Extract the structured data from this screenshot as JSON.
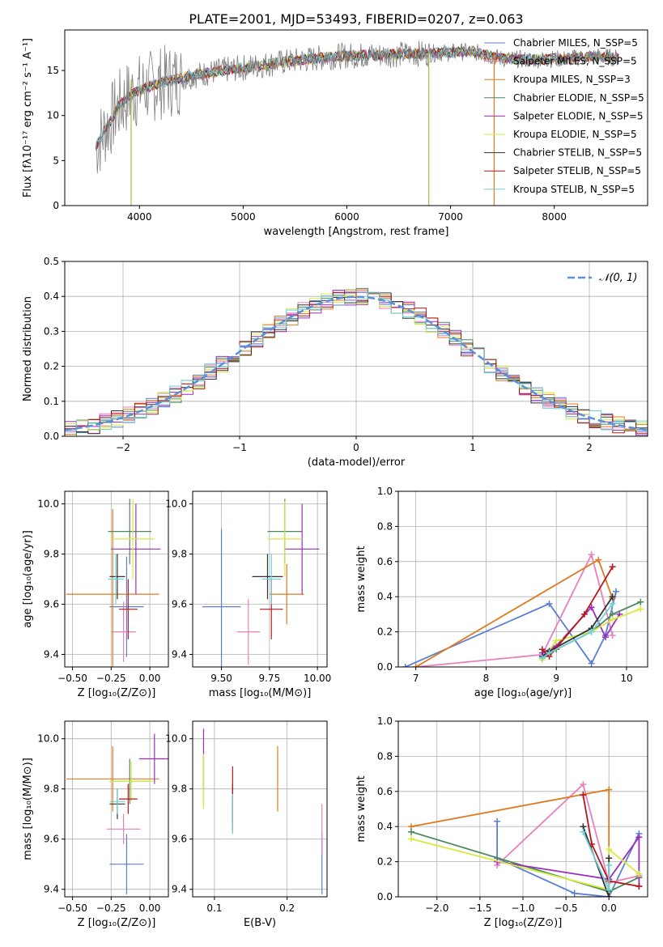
{
  "figure_title": "PLATE=2001, MJD=53493, FIBERID=0207, z=0.063",
  "colors": {
    "chabrier_miles": "#5b7fd6",
    "salpeter_miles": "#e87fbf",
    "kroupa_miles": "#e07a1f",
    "chabrier_elodie": "#4a8a5a",
    "salpeter_elodie": "#9a2fbd",
    "kroupa_elodie": "#d6ea3c",
    "chabrier_stelib": "#333333",
    "salpeter_stelib": "#b5171a",
    "kroupa_stelib": "#6fd1d8",
    "data": "#808080",
    "normal_curve": "#5b8fd9",
    "grid": "#b0b0b0"
  },
  "chart_data": [
    {
      "id": "spectrum",
      "type": "line",
      "xlabel": "wavelength [Angstrom, rest frame]",
      "ylabel": "Flux [fλ10⁻¹⁷ erg cm⁻² s⁻¹ A⁻¹]",
      "xlim": [
        3280,
        8900
      ],
      "ylim": [
        0,
        19.5
      ],
      "xticks": [
        4000,
        5000,
        6000,
        7000,
        8000
      ],
      "yticks": [
        0,
        5,
        10,
        15
      ],
      "grid": false,
      "legend_position": "right",
      "legend": [
        "Chabrier MILES, N_SSP=5",
        "Salpeter MILES, N_SSP=5",
        "Kroupa MILES, N_SSP=3",
        "Chabrier ELODIE, N_SSP=5",
        "Salpeter ELODIE, N_SSP=5",
        "Kroupa ELODIE, N_SSP=5",
        "Chabrier STELIB, N_SSP=5",
        "Salpeter STELIB, N_SSP=5",
        "Kroupa STELIB, N_SSP=5"
      ],
      "continuum": {
        "x": [
          3580,
          3650,
          3700,
          3800,
          3900,
          4000,
          4200,
          4500,
          4800,
          5000,
          5300,
          5600,
          5900,
          6200,
          6500,
          6800,
          7000,
          7200,
          7400,
          7500,
          7800,
          8100,
          8400,
          8600
        ],
        "y": [
          6.5,
          8,
          9,
          11,
          12.2,
          12.8,
          13.6,
          14.4,
          15,
          15.3,
          15.8,
          16.2,
          16.6,
          16.7,
          16.8,
          16.9,
          17,
          17.1,
          16.6,
          16.3,
          16.2,
          16.3,
          16.6,
          16.4
        ]
      }
    },
    {
      "id": "residual_distribution",
      "type": "line",
      "xlabel": "(data-model)/error",
      "ylabel": "Normed distribution",
      "xlim": [
        -2.5,
        2.5
      ],
      "ylim": [
        0,
        0.5
      ],
      "xticks": [
        -2,
        -1,
        0,
        1,
        2
      ],
      "xtick_labels": [
        "−2",
        "−1",
        "0",
        "1",
        "2"
      ],
      "yticks": [
        0,
        0.1,
        0.2,
        0.3,
        0.4,
        0.5
      ],
      "ytick_labels": [
        "0.0",
        "0.1",
        "0.2",
        "0.3",
        "0.4",
        "0.5"
      ],
      "grid": true,
      "legend_position": "top-right",
      "legend": [
        "𝒩(0, 1)"
      ],
      "histogram_bin_width": 0.1
    },
    {
      "id": "age_vs_Z",
      "type": "scatter",
      "xlabel": "Z [log₁₀(Z/Z⊙)]",
      "ylabel": "age  [log₁₀(age/yr)]",
      "xlim": [
        -0.55,
        0.12
      ],
      "ylim": [
        9.35,
        10.05
      ],
      "xticks": [
        -0.5,
        -0.25,
        0.0
      ],
      "xtick_labels": [
        "−0.50",
        "−0.25",
        "0.00"
      ],
      "yticks": [
        9.4,
        9.6,
        9.8,
        10.0
      ],
      "ytick_labels": [
        "9.4",
        "9.6",
        "9.8",
        "10.0"
      ],
      "grid": true,
      "points": [
        {
          "model": "chabrier_miles",
          "x": -0.15,
          "y": 9.59,
          "xerr": 0.11,
          "yerr": 0.2
        },
        {
          "model": "salpeter_miles",
          "x": -0.17,
          "y": 9.49,
          "xerr": 0.08,
          "yerr": 0.12
        },
        {
          "model": "kroupa_miles",
          "x": -0.24,
          "y": 9.64,
          "xerr": 0.3,
          "yerr": 0.34
        },
        {
          "model": "chabrier_elodie",
          "x": -0.13,
          "y": 9.89,
          "xerr": 0.14,
          "yerr": 0.13
        },
        {
          "model": "salpeter_elodie",
          "x": -0.09,
          "y": 9.82,
          "xerr": 0.16,
          "yerr": 0.18
        },
        {
          "model": "kroupa_elodie",
          "x": -0.11,
          "y": 9.86,
          "xerr": 0.14,
          "yerr": 0.16
        },
        {
          "model": "chabrier_stelib",
          "x": -0.21,
          "y": 9.71,
          "xerr": 0.05,
          "yerr": 0.09
        },
        {
          "model": "salpeter_stelib",
          "x": -0.14,
          "y": 9.58,
          "xerr": 0.06,
          "yerr": 0.12
        },
        {
          "model": "kroupa_stelib",
          "x": -0.22,
          "y": 9.7,
          "xerr": 0.05,
          "yerr": 0.1
        }
      ]
    },
    {
      "id": "age_vs_mass",
      "type": "scatter",
      "xlabel": "mass [log₁₀(M/M⊙)]",
      "ylabel": "",
      "xlim": [
        9.35,
        10.05
      ],
      "ylim": [
        9.35,
        10.05
      ],
      "xticks": [
        9.5,
        9.75,
        10.0
      ],
      "xtick_labels": [
        "9.50",
        "9.75",
        "10.00"
      ],
      "yticks": [
        9.4,
        9.6,
        9.8,
        10.0
      ],
      "ytick_labels": [
        "9.4",
        "9.6",
        "9.8",
        "10.0"
      ],
      "grid": true,
      "points": [
        {
          "model": "chabrier_miles",
          "x": 9.5,
          "y": 9.59,
          "xerr": 0.1,
          "yerr": 0.31
        },
        {
          "model": "salpeter_miles",
          "x": 9.64,
          "y": 9.49,
          "xerr": 0.06,
          "yerr": 0.13
        },
        {
          "model": "kroupa_miles",
          "x": 9.84,
          "y": 9.64,
          "xerr": 0.09,
          "yerr": 0.12
        },
        {
          "model": "chabrier_elodie",
          "x": 9.83,
          "y": 9.89,
          "xerr": 0.09,
          "yerr": 0.13
        },
        {
          "model": "salpeter_elodie",
          "x": 9.92,
          "y": 9.82,
          "xerr": 0.09,
          "yerr": 0.18
        },
        {
          "model": "kroupa_elodie",
          "x": 9.83,
          "y": 9.86,
          "xerr": 0.09,
          "yerr": 0.15
        },
        {
          "model": "chabrier_stelib",
          "x": 9.74,
          "y": 9.71,
          "xerr": 0.08,
          "yerr": 0.09
        },
        {
          "model": "salpeter_stelib",
          "x": 9.76,
          "y": 9.58,
          "xerr": 0.06,
          "yerr": 0.12
        },
        {
          "model": "kroupa_stelib",
          "x": 9.76,
          "y": 9.7,
          "xerr": 0.05,
          "yerr": 0.1
        }
      ]
    },
    {
      "id": "mass_weight_vs_age",
      "type": "line",
      "xlabel": "age  [log₁₀(age/yr)]",
      "ylabel": "mass weight",
      "xlim": [
        6.75,
        10.3
      ],
      "ylim": [
        0,
        1
      ],
      "xticks": [
        7,
        8,
        9,
        10
      ],
      "yticks": [
        0,
        0.2,
        0.4,
        0.6,
        0.8,
        1.0
      ],
      "ytick_labels": [
        "0.0",
        "0.2",
        "0.4",
        "0.6",
        "0.8",
        "1.0"
      ],
      "grid": true,
      "series": [
        {
          "model": "chabrier_miles",
          "x": [
            6.85,
            8.9,
            9.5,
            9.7,
            9.85
          ],
          "y": [
            0.0,
            0.36,
            0.02,
            0.18,
            0.43
          ]
        },
        {
          "model": "salpeter_miles",
          "x": [
            7.0,
            8.8,
            9.5,
            9.8
          ],
          "y": [
            0.0,
            0.07,
            0.64,
            0.18
          ]
        },
        {
          "model": "kroupa_miles",
          "x": [
            7.0,
            9.6,
            9.8
          ],
          "y": [
            0.0,
            0.61,
            0.39
          ]
        },
        {
          "model": "chabrier_elodie",
          "x": [
            8.8,
            9.0,
            9.5,
            9.8,
            10.2
          ],
          "y": [
            0.05,
            0.1,
            0.2,
            0.3,
            0.37
          ]
        },
        {
          "model": "salpeter_elodie",
          "x": [
            8.8,
            9.0,
            9.5,
            9.7,
            9.9
          ],
          "y": [
            0.08,
            0.12,
            0.34,
            0.17,
            0.3
          ]
        },
        {
          "model": "kroupa_elodie",
          "x": [
            8.8,
            9.0,
            9.5,
            9.8,
            10.2
          ],
          "y": [
            0.04,
            0.15,
            0.2,
            0.27,
            0.33
          ]
        },
        {
          "model": "chabrier_stelib",
          "x": [
            8.8,
            8.9,
            9.5,
            9.8
          ],
          "y": [
            0.06,
            0.09,
            0.22,
            0.4
          ]
        },
        {
          "model": "salpeter_stelib",
          "x": [
            8.8,
            8.9,
            9.4,
            9.8
          ],
          "y": [
            0.1,
            0.06,
            0.3,
            0.57
          ]
        },
        {
          "model": "kroupa_stelib",
          "x": [
            8.8,
            8.9,
            9.5,
            9.8
          ],
          "y": [
            0.05,
            0.08,
            0.2,
            0.36
          ]
        }
      ]
    },
    {
      "id": "mass_vs_Z",
      "type": "scatter",
      "xlabel": "Z [log₁₀(Z/Z⊙)]",
      "ylabel": "mass [log₁₀(M/M⊙)]",
      "xlim": [
        -0.55,
        0.12
      ],
      "ylim": [
        9.37,
        10.07
      ],
      "xticks": [
        -0.5,
        -0.25,
        0.0
      ],
      "xtick_labels": [
        "−0.50",
        "−0.25",
        "0.00"
      ],
      "yticks": [
        9.4,
        9.6,
        9.8,
        10.0
      ],
      "ytick_labels": [
        "9.4",
        "9.6",
        "9.8",
        "10.0"
      ],
      "grid": true,
      "points": [
        {
          "model": "chabrier_miles",
          "x": -0.15,
          "y": 9.5,
          "xerr": 0.11,
          "yerr": 0.12
        },
        {
          "model": "salpeter_miles",
          "x": -0.17,
          "y": 9.64,
          "xerr": 0.11,
          "yerr": 0.06
        },
        {
          "model": "kroupa_miles",
          "x": -0.24,
          "y": 9.84,
          "xerr": 0.3,
          "yerr": 0.13
        },
        {
          "model": "chabrier_elodie",
          "x": -0.13,
          "y": 9.83,
          "xerr": 0.13,
          "yerr": 0.09
        },
        {
          "model": "salpeter_elodie",
          "x": 0.03,
          "y": 9.92,
          "xerr": 0.1,
          "yerr": 0.1
        },
        {
          "model": "kroupa_elodie",
          "x": -0.12,
          "y": 9.83,
          "xerr": 0.14,
          "yerr": 0.08
        },
        {
          "model": "chabrier_stelib",
          "x": -0.21,
          "y": 9.74,
          "xerr": 0.05,
          "yerr": 0.06
        },
        {
          "model": "salpeter_stelib",
          "x": -0.14,
          "y": 9.76,
          "xerr": 0.06,
          "yerr": 0.06
        },
        {
          "model": "kroupa_stelib",
          "x": -0.21,
          "y": 9.75,
          "xerr": 0.05,
          "yerr": 0.05
        }
      ]
    },
    {
      "id": "mass_vs_ebv",
      "type": "scatter",
      "xlabel": "E(B-V)",
      "ylabel": "",
      "xlim": [
        0.07,
        0.255
      ],
      "ylim": [
        9.37,
        10.07
      ],
      "xticks": [
        0.1,
        0.2
      ],
      "xtick_labels": [
        "0.1",
        "0.2"
      ],
      "yticks": [
        9.4,
        9.6,
        9.8,
        10.0
      ],
      "ytick_labels": [
        "9.4",
        "9.6",
        "9.8",
        "10.0"
      ],
      "grid": true,
      "points": [
        {
          "model": "chabrier_miles",
          "x": 0.248,
          "y": 9.5,
          "yerr": 0.12
        },
        {
          "model": "salpeter_miles",
          "x": 0.248,
          "y": 9.64,
          "yerr": 0.1
        },
        {
          "model": "kroupa_miles",
          "x": 0.187,
          "y": 9.84,
          "yerr": 0.13
        },
        {
          "model": "chabrier_elodie",
          "x": 0.085,
          "y": 9.83,
          "yerr": 0.1
        },
        {
          "model": "salpeter_elodie",
          "x": 0.085,
          "y": 9.92,
          "yerr": 0.12
        },
        {
          "model": "kroupa_elodie",
          "x": 0.085,
          "y": 9.83,
          "yerr": 0.11
        },
        {
          "model": "chabrier_stelib",
          "x": 0.125,
          "y": 9.74,
          "yerr": 0.08
        },
        {
          "model": "salpeter_stelib",
          "x": 0.125,
          "y": 9.76,
          "yerr": 0.13
        },
        {
          "model": "kroupa_stelib",
          "x": 0.125,
          "y": 9.7,
          "yerr": 0.08
        }
      ]
    },
    {
      "id": "mass_weight_vs_Z",
      "type": "line",
      "xlabel": "Z [log₁₀(Z/Z⊙)]",
      "ylabel": "mass weight",
      "xlim": [
        -2.45,
        0.45
      ],
      "ylim": [
        0,
        1
      ],
      "xticks": [
        -2.0,
        -1.5,
        -1.0,
        -0.5,
        0.0
      ],
      "xtick_labels": [
        "−2.0",
        "−1.5",
        "−1.0",
        "−0.5",
        "0.0"
      ],
      "yticks": [
        0,
        0.2,
        0.4,
        0.6,
        0.8,
        1.0
      ],
      "ytick_labels": [
        "0.0",
        "0.2",
        "0.4",
        "0.6",
        "0.8",
        "1.0"
      ],
      "grid": true,
      "series": [
        {
          "model": "chabrier_miles",
          "x": [
            -1.3,
            -1.3,
            -0.4,
            0.0,
            0.35
          ],
          "y": [
            0.43,
            0.22,
            0.02,
            0.0,
            0.36
          ]
        },
        {
          "model": "salpeter_miles",
          "x": [
            -1.3,
            -0.3,
            0.0,
            0.35
          ],
          "y": [
            0.18,
            0.64,
            0.08,
            0.12
          ]
        },
        {
          "model": "kroupa_miles",
          "x": [
            -2.3,
            0.0,
            0.0
          ],
          "y": [
            0.4,
            0.61,
            0.0
          ]
        },
        {
          "model": "chabrier_elodie",
          "x": [
            -2.3,
            0.0,
            0.35
          ],
          "y": [
            0.37,
            0.03,
            0.11
          ]
        },
        {
          "model": "salpeter_elodie",
          "x": [
            -1.3,
            0.0,
            0.35,
            0.35
          ],
          "y": [
            0.2,
            0.1,
            0.34,
            0.06
          ]
        },
        {
          "model": "kroupa_elodie",
          "x": [
            -2.3,
            0.0,
            0.0,
            0.35
          ],
          "y": [
            0.33,
            0.04,
            0.27,
            0.13
          ]
        },
        {
          "model": "chabrier_stelib",
          "x": [
            -0.3,
            0.0,
            0.0
          ],
          "y": [
            0.4,
            0.0,
            0.22
          ]
        },
        {
          "model": "salpeter_stelib",
          "x": [
            -0.3,
            -0.2,
            0.0,
            0.35
          ],
          "y": [
            0.58,
            0.3,
            0.09,
            0.06
          ]
        },
        {
          "model": "kroupa_stelib",
          "x": [
            -0.3,
            0.0,
            0.0
          ],
          "y": [
            0.37,
            0.04,
            0.18
          ]
        }
      ]
    }
  ]
}
